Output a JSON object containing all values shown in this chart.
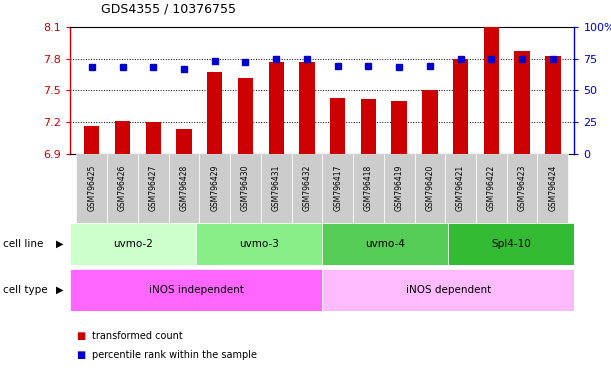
{
  "title": "GDS4355 / 10376755",
  "samples": [
    "GSM796425",
    "GSM796426",
    "GSM796427",
    "GSM796428",
    "GSM796429",
    "GSM796430",
    "GSM796431",
    "GSM796432",
    "GSM796417",
    "GSM796418",
    "GSM796419",
    "GSM796420",
    "GSM796421",
    "GSM796422",
    "GSM796423",
    "GSM796424"
  ],
  "transformed_count": [
    7.16,
    7.21,
    7.2,
    7.13,
    7.67,
    7.62,
    7.77,
    7.77,
    7.43,
    7.42,
    7.4,
    7.5,
    7.8,
    8.1,
    7.87,
    7.82
  ],
  "percentile_rank": [
    68,
    68,
    68,
    67,
    73,
    72,
    75,
    75,
    69,
    69,
    68,
    69,
    75,
    75,
    75,
    75
  ],
  "ylim_left": [
    6.9,
    8.1
  ],
  "ylim_right": [
    0,
    100
  ],
  "yticks_left": [
    6.9,
    7.2,
    7.5,
    7.8,
    8.1
  ],
  "yticks_right": [
    0,
    25,
    50,
    75,
    100
  ],
  "ytick_labels_left": [
    "6.9",
    "7.2",
    "7.5",
    "7.8",
    "8.1"
  ],
  "ytick_labels_right": [
    "0",
    "25",
    "50",
    "75",
    "100%"
  ],
  "bar_color": "#cc0000",
  "dot_color": "#0000cc",
  "cell_lines": [
    {
      "label": "uvmo-2",
      "start": 0,
      "end": 3,
      "color": "#ccffcc"
    },
    {
      "label": "uvmo-3",
      "start": 4,
      "end": 7,
      "color": "#88ee88"
    },
    {
      "label": "uvmo-4",
      "start": 8,
      "end": 11,
      "color": "#55cc55"
    },
    {
      "label": "Spl4-10",
      "start": 12,
      "end": 15,
      "color": "#33bb33"
    }
  ],
  "cell_types": [
    {
      "label": "iNOS independent",
      "start": 0,
      "end": 7,
      "color": "#ff66ff"
    },
    {
      "label": "iNOS dependent",
      "start": 8,
      "end": 15,
      "color": "#ffbbff"
    }
  ],
  "legend_items": [
    {
      "label": "transformed count",
      "color": "#cc0000"
    },
    {
      "label": "percentile rank within the sample",
      "color": "#0000cc"
    }
  ],
  "bar_width": 0.5,
  "left_axis_color": "#cc0000",
  "right_axis_color": "#0000cc",
  "xtick_bg_color": "#cccccc",
  "label_fontsize": 7,
  "bar_base": 6.9
}
